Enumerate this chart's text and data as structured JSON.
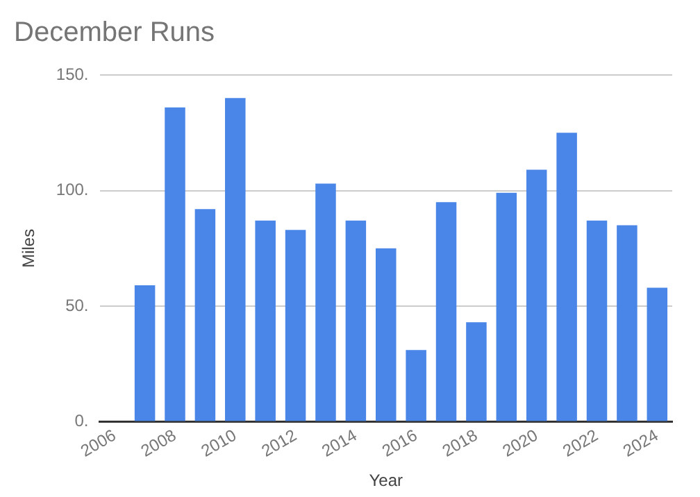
{
  "chart_data": {
    "type": "bar",
    "title": "December Runs",
    "xlabel": "Year",
    "ylabel": "Miles",
    "categories": [
      "2006",
      null,
      "2008",
      null,
      "2010",
      null,
      "2012",
      null,
      "2014",
      null,
      "2016",
      null,
      "2018",
      null,
      "2020",
      null,
      "2022",
      null,
      "2024"
    ],
    "values": [
      0,
      59,
      136,
      92,
      140,
      87,
      83,
      103,
      87,
      75,
      31,
      95,
      43,
      99,
      109,
      125,
      87,
      85,
      58
    ],
    "color": "#4a86e8",
    "ylim": [
      0,
      150
    ],
    "yticks": [
      {
        "value": 0,
        "label": "0."
      },
      {
        "value": 50,
        "label": "50."
      },
      {
        "value": 100,
        "label": "100."
      },
      {
        "value": 150,
        "label": "150."
      }
    ],
    "grid": "y"
  }
}
